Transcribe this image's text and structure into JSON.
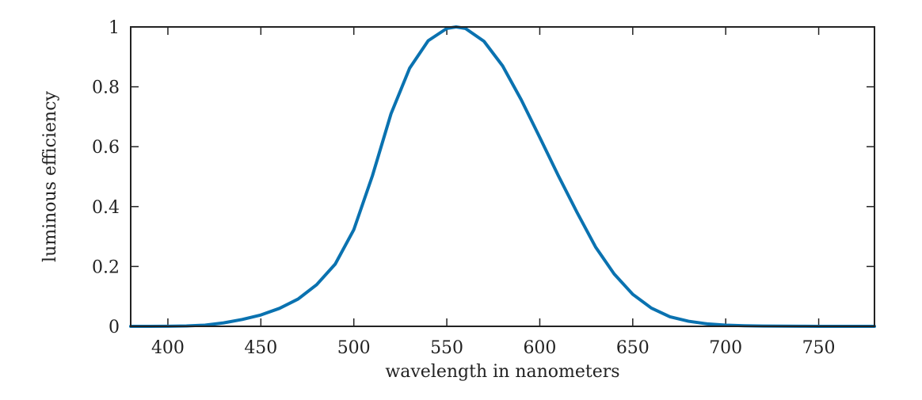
{
  "chart_data": {
    "type": "line",
    "title": "",
    "xlabel": "wavelength in nanometers",
    "ylabel": "luminous efficiency",
    "xlim": [
      380,
      780
    ],
    "ylim": [
      0,
      1
    ],
    "xticks": [
      400,
      450,
      500,
      550,
      600,
      650,
      700,
      750
    ],
    "yticks": [
      0,
      0.2,
      0.4,
      0.6,
      0.8,
      1
    ],
    "xtick_labels": [
      "400",
      "450",
      "500",
      "550",
      "600",
      "650",
      "700",
      "750"
    ],
    "ytick_labels": [
      "0",
      "0.2",
      "0.4",
      "0.6",
      "0.8",
      "1"
    ],
    "grid": false,
    "series": [
      {
        "name": "luminous efficiency",
        "color": "#0a72b0",
        "x": [
          380,
          390,
          400,
          410,
          420,
          430,
          440,
          450,
          460,
          470,
          480,
          490,
          500,
          510,
          520,
          530,
          540,
          550,
          555,
          560,
          570,
          580,
          590,
          600,
          610,
          620,
          630,
          640,
          650,
          660,
          670,
          680,
          690,
          700,
          710,
          720,
          730,
          740,
          750,
          760,
          770,
          780
        ],
        "y": [
          4e-05,
          0.00012,
          0.0004,
          0.0012,
          0.004,
          0.0116,
          0.023,
          0.038,
          0.06,
          0.091,
          0.139,
          0.208,
          0.323,
          0.503,
          0.71,
          0.862,
          0.954,
          0.995,
          1.0,
          0.995,
          0.952,
          0.87,
          0.757,
          0.631,
          0.503,
          0.381,
          0.265,
          0.175,
          0.107,
          0.061,
          0.032,
          0.017,
          0.0082,
          0.0041,
          0.0021,
          0.00105,
          0.00052,
          0.00025,
          0.00012,
          6e-05,
          3e-05,
          1.5e-05
        ]
      }
    ]
  }
}
